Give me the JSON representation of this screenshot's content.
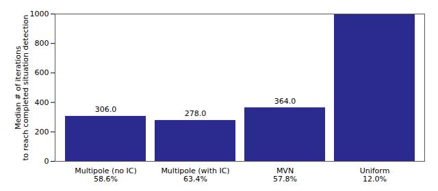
{
  "chart_data": {
    "type": "bar",
    "categories": [
      "Multipole (no IC)\n58.6%",
      "Multipole (with IC)\n63.4%",
      "MVN\n57.8%",
      "Uniform\n12.0%"
    ],
    "values": [
      306.0,
      278.0,
      364.0,
      1000.0
    ],
    "value_labels": [
      "306.0",
      "278.0",
      "364.0",
      null
    ],
    "data_labels": true,
    "color": "#2B2B8F",
    "ylabel": "Median # of iterations\nto reach completed situation detection",
    "ylim": [
      0,
      1000
    ],
    "yticks": [
      0,
      200,
      400,
      600,
      800,
      1000
    ],
    "grid": false
  }
}
